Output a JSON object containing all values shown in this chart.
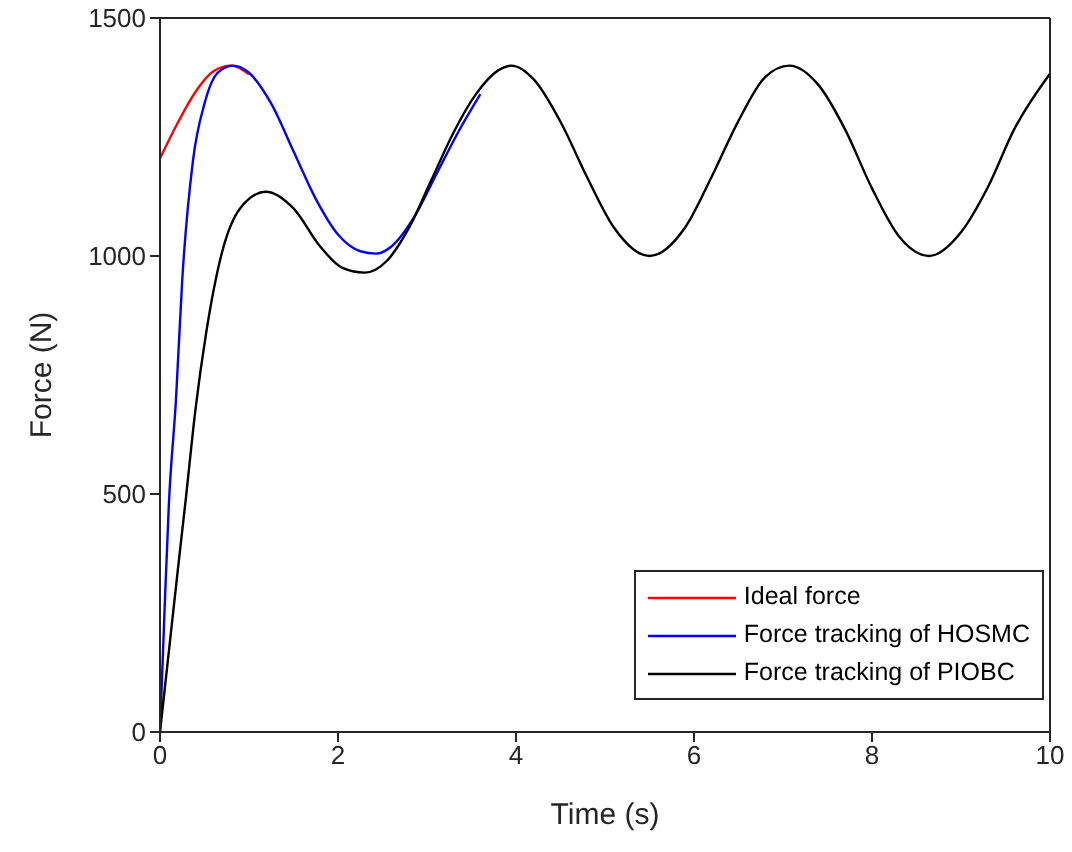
{
  "chart_data": {
    "type": "line",
    "xlabel": "Time (s)",
    "ylabel": "Force (N)",
    "xlim": [
      0,
      10
    ],
    "xticks": [
      0,
      2,
      4,
      6,
      8,
      10
    ],
    "ylim": [
      0,
      1500
    ],
    "yticks": [
      0,
      500,
      1000,
      1500
    ],
    "legend": "bottom right",
    "marker": "none",
    "line_style": "solid",
    "series": [
      {
        "name": "Ideal force",
        "color": "#ff0000",
        "x": [
          0,
          0.2,
          0.4,
          0.6,
          0.8,
          1.0
        ],
        "values": [
          1205,
          1280,
          1345,
          1388,
          1400,
          1382
        ]
      },
      {
        "name": "Force tracking of HOSMC",
        "color": "#0000ff",
        "x": [
          0,
          0.05,
          0.1,
          0.18,
          0.25,
          0.37,
          0.5,
          0.65,
          0.82,
          1.0,
          1.25,
          1.5,
          1.75,
          2.0,
          2.25,
          2.43,
          2.6,
          2.85,
          3.1,
          3.35,
          3.6
        ],
        "values": [
          0,
          250,
          480,
          700,
          950,
          1200,
          1320,
          1385,
          1400,
          1385,
          1320,
          1220,
          1120,
          1045,
          1010,
          1005,
          1020,
          1080,
          1170,
          1260,
          1340
        ]
      },
      {
        "name": "Force tracking of PIOBC",
        "color": "#000000",
        "x": [
          0,
          0.1,
          0.2,
          0.29,
          0.4,
          0.52,
          0.7,
          0.9,
          1.19,
          1.5,
          1.8,
          2.05,
          2.3,
          2.55,
          2.8,
          3.05,
          3.3,
          3.55,
          3.8,
          3.95,
          4.2,
          4.5,
          4.8,
          5.1,
          5.5,
          5.9,
          6.2,
          6.5,
          6.8,
          7.07,
          7.4,
          7.7,
          8.0,
          8.3,
          8.64,
          9.0,
          9.3,
          9.6,
          10
        ],
        "values": [
          0,
          170,
          340,
          490,
          680,
          840,
          1010,
          1100,
          1135,
          1100,
          1020,
          975,
          965,
          990,
          1060,
          1160,
          1260,
          1340,
          1390,
          1400,
          1371,
          1282,
          1165,
          1060,
          1000,
          1060,
          1167,
          1284,
          1376,
          1400,
          1359,
          1265,
          1142,
          1042,
          1000,
          1050,
          1144,
          1267,
          1383
        ]
      }
    ]
  }
}
